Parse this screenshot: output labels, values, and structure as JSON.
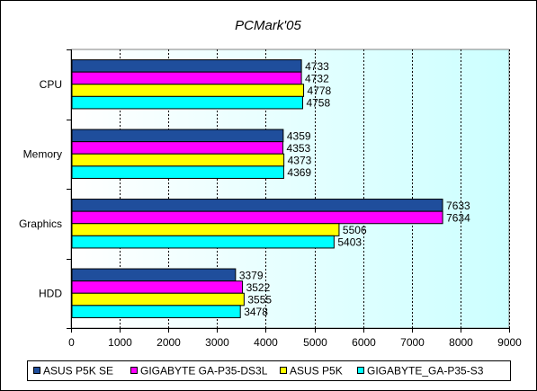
{
  "chart_data": {
    "type": "bar",
    "orientation": "horizontal",
    "title": "PCMark'05",
    "categories": [
      "CPU",
      "Memory",
      "Graphics",
      "HDD"
    ],
    "series": [
      {
        "name": "ASUS P5K SE",
        "color": "#1f4e9c",
        "values": [
          4733,
          4359,
          7633,
          3379
        ]
      },
      {
        "name": "GIGABYTE GA-P35-DS3L",
        "color": "#ff00ff",
        "values": [
          4732,
          4353,
          7634,
          3522
        ]
      },
      {
        "name": "ASUS P5K",
        "color": "#ffff00",
        "values": [
          4778,
          4373,
          5506,
          3555
        ]
      },
      {
        "name": "GIGABYTE_GA-P35-S3",
        "color": "#00ffff",
        "values": [
          4758,
          4369,
          5403,
          3478
        ]
      }
    ],
    "xlim": [
      0,
      9000
    ],
    "xticks": [
      0,
      1000,
      2000,
      3000,
      4000,
      5000,
      6000,
      7000,
      8000,
      9000
    ],
    "grid": true,
    "plot_background": "#e0ffff",
    "legend_position": "bottom"
  }
}
